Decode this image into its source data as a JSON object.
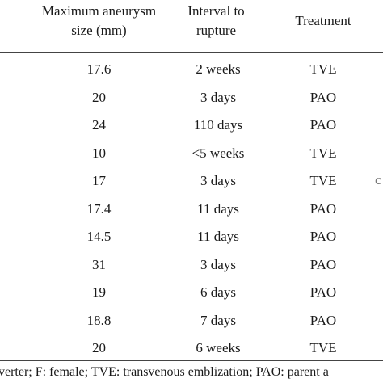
{
  "table": {
    "headers": {
      "size_line1": "Maximum aneurysm",
      "size_line2": "size (mm)",
      "interval_line1": "Interval to",
      "interval_line2": "rupture",
      "treatment": "Treatment"
    },
    "rows": [
      {
        "size": "17.6",
        "interval": "2 weeks",
        "treatment": "TVE"
      },
      {
        "size": "20",
        "interval": "3 days",
        "treatment": "PAO"
      },
      {
        "size": "24",
        "interval": "110 days",
        "treatment": "PAO"
      },
      {
        "size": "10",
        "interval": "<5 weeks",
        "treatment": "TVE"
      },
      {
        "size": "17",
        "interval": "3 days",
        "treatment": "TVE"
      },
      {
        "size": "17.4",
        "interval": "11 days",
        "treatment": "PAO"
      },
      {
        "size": "14.5",
        "interval": "11 days",
        "treatment": "PAO"
      },
      {
        "size": "31",
        "interval": "3 days",
        "treatment": "PAO"
      },
      {
        "size": "19",
        "interval": "6 days",
        "treatment": "PAO"
      },
      {
        "size": "18.8",
        "interval": "7 days",
        "treatment": "PAO"
      },
      {
        "size": "20",
        "interval": "6 weeks",
        "treatment": "TVE"
      }
    ],
    "edge_mark": "c"
  },
  "footnote": "verter; F: female; TVE: transvenous emblization; PAO: parent a"
}
